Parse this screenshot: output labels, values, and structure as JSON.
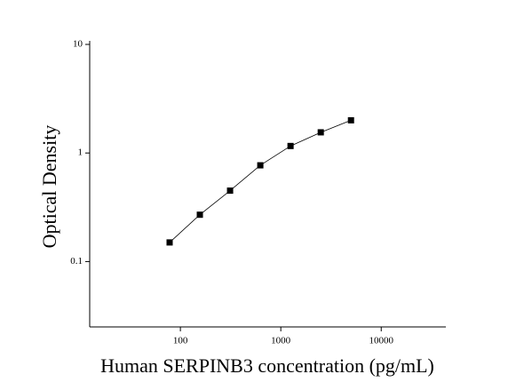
{
  "chart_data": {
    "type": "scatter",
    "x_label": "Human SERPINB3 concentration (pg/mL)",
    "y_label": "Optical Density",
    "x": [
      78.125,
      156.25,
      312.5,
      625,
      1250,
      2500,
      5000
    ],
    "values": [
      0.15,
      0.27,
      0.45,
      0.77,
      1.16,
      1.55,
      2.0
    ],
    "color": "#000000",
    "xlim": [
      12.5,
      44000
    ],
    "ylim": [
      0.025,
      10
    ],
    "xticks": [
      100,
      1000,
      10000
    ],
    "yticks": [
      0.1,
      1,
      10
    ],
    "xscale": "log",
    "yscale": "log",
    "grid": false
  }
}
